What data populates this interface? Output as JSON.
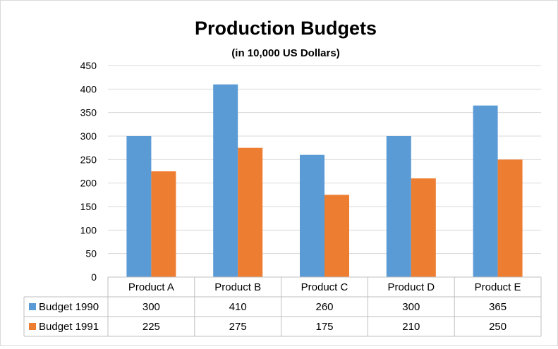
{
  "chart_data": {
    "type": "bar",
    "title": "Production Budgets",
    "subtitle": "(in  10,000 US Dollars)",
    "categories": [
      "Product A",
      "Product B",
      "Product C",
      "Product D",
      "Product E"
    ],
    "series": [
      {
        "name": "Budget 1990",
        "values": [
          300,
          410,
          260,
          300,
          365
        ],
        "color": "#5b9bd5"
      },
      {
        "name": "Budget 1991",
        "values": [
          225,
          275,
          175,
          210,
          250
        ],
        "color": "#ed7d31"
      }
    ],
    "ylim": [
      0,
      450
    ],
    "yticks": [
      0,
      50,
      100,
      150,
      200,
      250,
      300,
      350,
      400,
      450
    ],
    "grid": true,
    "legend": "data-table-rows"
  },
  "colors": {
    "grid": "#d9d9d9",
    "table_border": "#bfbfbf",
    "text": "#000000"
  }
}
